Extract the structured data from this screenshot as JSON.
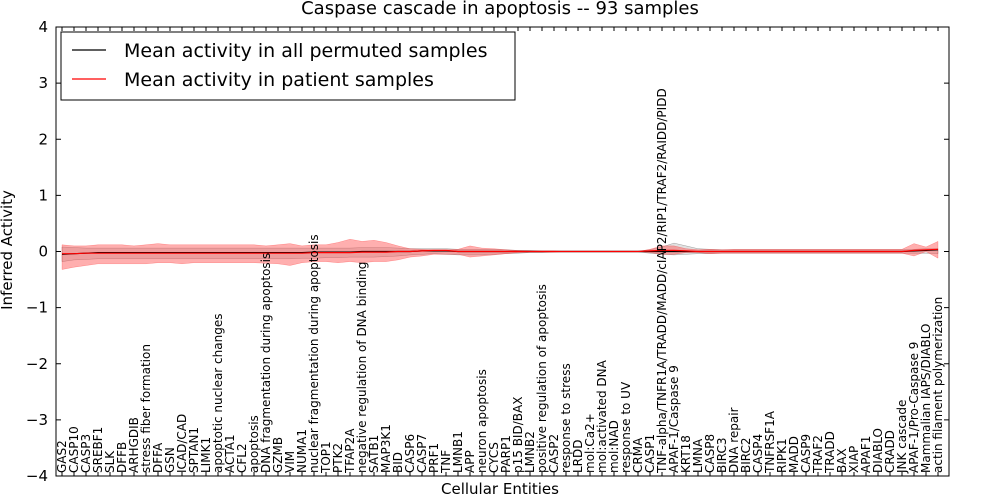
{
  "chart_data": {
    "type": "line",
    "title": "Caspase cascade in apoptosis -- 93 samples",
    "xlabel": "Cellular Entities",
    "ylabel": "Inferred Activity",
    "ylim": [
      -4,
      4
    ],
    "yticks": [
      -4,
      -3,
      -2,
      -1,
      0,
      1,
      2,
      3,
      4
    ],
    "ytick_labels": [
      "−4",
      "−3",
      "−2",
      "−1",
      "0",
      "1",
      "2",
      "3",
      "4"
    ],
    "legend_position": "top-left",
    "categories": [
      "GAS2",
      "CASP10",
      "CASP3",
      "SREBF1",
      "SLK",
      "DFFB",
      "ARHGDIB",
      "stress fiber formation",
      "DFFA",
      "GSN",
      "ICAD/CAD",
      "SPTAN1",
      "LIMK1",
      "apoptotic nuclear changes",
      "ACTA1",
      "CFL2",
      "apoptosis",
      "DNA fragmentation during apoptosis",
      "GZMB",
      "VIM",
      "NUMA1",
      "nuclear fragmentation during apoptosis",
      "TOP1",
      "PTK2",
      "TFAP2A",
      "negative regulation of DNA binding",
      "SATB1",
      "MAP3K1",
      "BID",
      "CASP6",
      "CASP7",
      "PRF1",
      "TNF",
      "LMNB1",
      "APP",
      "neuron apoptosis",
      "CYCS",
      "PARP1",
      "p15 BID/BAX",
      "LMNB2",
      "positive regulation of apoptosis",
      "CASP2",
      "response to stress",
      "LRDD",
      "mol:Ca2+",
      "mol:activated DNA",
      "mol:NAD",
      "response to UV",
      "CRMA",
      "CASP1",
      "TNF-alpha/TNFR1A/TRADD/MADD/cIAP2/RIP1/TRAF2/RAIDD/PIDD",
      "APAF-1/Caspase 9",
      "KRT18",
      "LMNA",
      "CASP8",
      "BIRC3",
      "DNA repair",
      "BIRC2",
      "CASP4",
      "TNFRSF1A",
      "RIPK1",
      "MADD",
      "CASP9",
      "TRAF2",
      "TRADD",
      "BAX",
      "XIAP",
      "APAF1",
      "DIABLO",
      "CRADD",
      "JNK cascade",
      "APAF-1/Pro-Caspase 9",
      "Mammalian IAPS/DIABLO",
      "actin filament polymerization"
    ],
    "series": [
      {
        "name": "Mean activity in all permuted samples",
        "color": "#000000",
        "values": [
          -0.05,
          -0.04,
          -0.03,
          -0.02,
          -0.02,
          -0.02,
          -0.02,
          -0.02,
          -0.02,
          -0.02,
          -0.02,
          -0.02,
          -0.02,
          -0.02,
          -0.02,
          -0.02,
          -0.02,
          -0.02,
          -0.02,
          -0.02,
          -0.02,
          -0.01,
          -0.01,
          -0.01,
          -0.01,
          0.0,
          0.0,
          0.0,
          0.0,
          0.0,
          0.01,
          0.01,
          0.01,
          0.0,
          0.0,
          0.0,
          0.0,
          0.0,
          0.0,
          0.0,
          0.0,
          0.0,
          0.0,
          0.0,
          0.0,
          0.0,
          0.0,
          0.0,
          0.0,
          0.0,
          0.0,
          0.0,
          0.0,
          0.0,
          0.0,
          0.0,
          0.0,
          0.0,
          0.0,
          0.0,
          0.0,
          0.0,
          0.0,
          0.0,
          0.0,
          0.0,
          0.0,
          0.0,
          0.0,
          0.0,
          0.0,
          0.01,
          0.02,
          0.03
        ],
        "band_lower": [
          -0.18,
          -0.15,
          -0.14,
          -0.13,
          -0.13,
          -0.13,
          -0.13,
          -0.13,
          -0.13,
          -0.13,
          -0.13,
          -0.13,
          -0.13,
          -0.13,
          -0.13,
          -0.13,
          -0.13,
          -0.13,
          -0.13,
          -0.13,
          -0.12,
          -0.12,
          -0.11,
          -0.11,
          -0.1,
          -0.1,
          -0.1,
          -0.09,
          -0.08,
          -0.06,
          -0.05,
          -0.04,
          -0.05,
          -0.06,
          -0.06,
          -0.06,
          -0.05,
          -0.04,
          -0.03,
          -0.02,
          -0.02,
          -0.01,
          -0.01,
          -0.01,
          -0.01,
          -0.01,
          -0.01,
          -0.01,
          -0.01,
          -0.03,
          -0.05,
          -0.06,
          -0.05,
          -0.04,
          -0.04,
          -0.03,
          -0.03,
          -0.03,
          -0.03,
          -0.03,
          -0.03,
          -0.03,
          -0.03,
          -0.03,
          -0.03,
          -0.03,
          -0.03,
          -0.03,
          -0.03,
          -0.03,
          -0.03,
          -0.03,
          -0.03,
          -0.04
        ],
        "band_upper": [
          0.08,
          0.07,
          0.06,
          0.06,
          0.06,
          0.06,
          0.06,
          0.06,
          0.06,
          0.06,
          0.06,
          0.06,
          0.06,
          0.06,
          0.06,
          0.06,
          0.06,
          0.06,
          0.06,
          0.06,
          0.06,
          0.06,
          0.06,
          0.06,
          0.06,
          0.07,
          0.07,
          0.07,
          0.06,
          0.05,
          0.05,
          0.05,
          0.05,
          0.04,
          0.04,
          0.04,
          0.04,
          0.03,
          0.02,
          0.02,
          0.01,
          0.01,
          0.01,
          0.01,
          0.01,
          0.01,
          0.01,
          0.01,
          0.01,
          0.03,
          0.08,
          0.15,
          0.1,
          0.05,
          0.04,
          0.03,
          0.03,
          0.03,
          0.03,
          0.03,
          0.03,
          0.03,
          0.03,
          0.03,
          0.03,
          0.03,
          0.03,
          0.03,
          0.03,
          0.03,
          0.03,
          0.04,
          0.05,
          0.05
        ]
      },
      {
        "name": "Mean activity in patient samples",
        "color": "#ff0000",
        "values": [
          -0.04,
          -0.04,
          -0.03,
          -0.03,
          -0.03,
          -0.03,
          -0.03,
          -0.03,
          -0.03,
          -0.03,
          -0.03,
          -0.03,
          -0.03,
          -0.03,
          -0.03,
          -0.03,
          -0.03,
          -0.03,
          -0.03,
          -0.03,
          -0.03,
          -0.02,
          -0.02,
          -0.02,
          -0.02,
          -0.01,
          -0.01,
          -0.01,
          0.0,
          0.0,
          0.01,
          0.02,
          0.02,
          0.0,
          0.0,
          0.0,
          0.0,
          0.0,
          0.0,
          0.0,
          0.0,
          0.0,
          0.0,
          0.0,
          0.0,
          0.0,
          0.0,
          0.0,
          0.0,
          0.01,
          0.02,
          0.02,
          0.01,
          0.0,
          0.0,
          0.0,
          0.0,
          0.0,
          0.0,
          0.0,
          0.0,
          0.0,
          0.0,
          0.0,
          0.0,
          0.0,
          0.0,
          0.0,
          0.0,
          0.0,
          0.0,
          0.02,
          0.03,
          0.04
        ],
        "band_lower": [
          -0.32,
          -0.28,
          -0.25,
          -0.22,
          -0.22,
          -0.22,
          -0.22,
          -0.22,
          -0.2,
          -0.2,
          -0.22,
          -0.2,
          -0.2,
          -0.2,
          -0.2,
          -0.2,
          -0.2,
          -0.21,
          -0.22,
          -0.25,
          -0.2,
          -0.18,
          -0.18,
          -0.2,
          -0.18,
          -0.2,
          -0.18,
          -0.18,
          -0.15,
          -0.1,
          -0.08,
          -0.05,
          -0.05,
          -0.05,
          -0.1,
          -0.08,
          -0.06,
          -0.04,
          -0.02,
          -0.01,
          -0.01,
          -0.01,
          0.0,
          0.0,
          0.0,
          0.0,
          0.0,
          0.0,
          0.0,
          -0.02,
          -0.05,
          -0.05,
          -0.02,
          -0.02,
          -0.04,
          -0.03,
          -0.03,
          -0.03,
          -0.03,
          -0.03,
          -0.03,
          -0.03,
          -0.03,
          -0.03,
          -0.03,
          -0.03,
          -0.03,
          -0.03,
          -0.03,
          -0.03,
          -0.03,
          -0.08,
          0.0,
          -0.12
        ],
        "band_upper": [
          0.12,
          0.1,
          0.1,
          0.12,
          0.12,
          0.12,
          0.1,
          0.12,
          0.14,
          0.12,
          0.12,
          0.12,
          0.12,
          0.12,
          0.12,
          0.12,
          0.12,
          0.1,
          0.12,
          0.14,
          0.1,
          0.12,
          0.12,
          0.16,
          0.22,
          0.18,
          0.2,
          0.16,
          0.1,
          0.05,
          0.04,
          0.03,
          0.03,
          0.04,
          0.1,
          0.06,
          0.05,
          0.03,
          0.02,
          0.01,
          0.01,
          0.01,
          0.0,
          0.0,
          0.0,
          0.0,
          0.0,
          0.0,
          0.0,
          0.04,
          0.1,
          0.1,
          0.05,
          0.03,
          0.04,
          0.03,
          0.04,
          0.04,
          0.04,
          0.04,
          0.04,
          0.04,
          0.04,
          0.04,
          0.04,
          0.04,
          0.04,
          0.04,
          0.04,
          0.04,
          0.04,
          0.14,
          0.08,
          0.18
        ]
      }
    ]
  }
}
